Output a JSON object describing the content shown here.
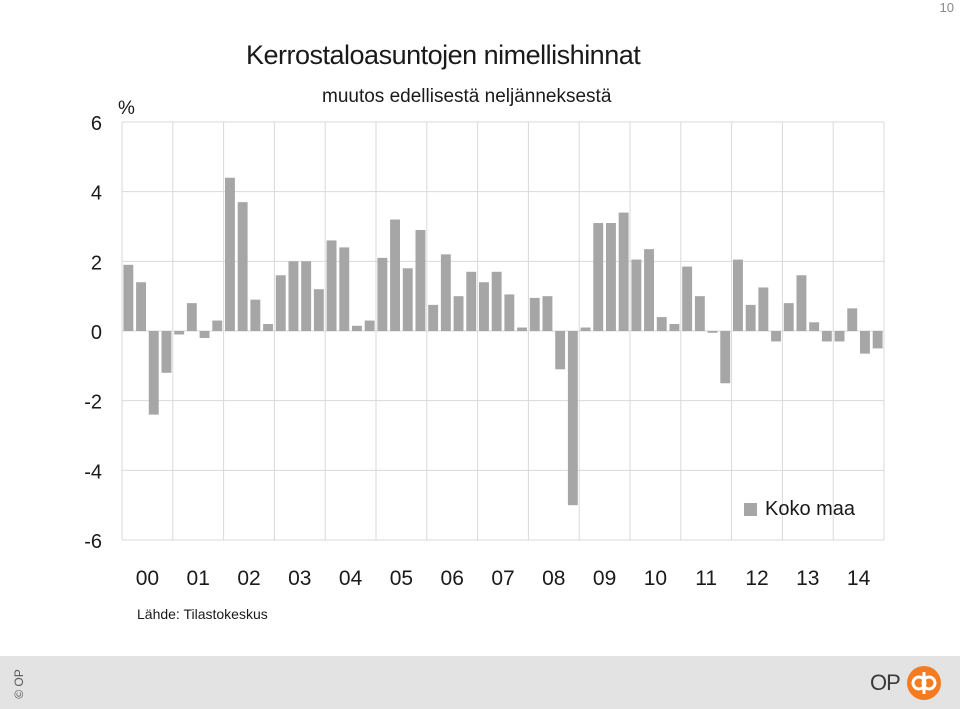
{
  "page_number": "10",
  "title": "Kerrostaloasuntojen nimellishinnat",
  "subtitle": "muutos edellisestä neljänneksestä",
  "unit_label": "%",
  "source": "Lähde: Tilastokeskus",
  "copyright": "© OP",
  "logo_text": "OP",
  "colors": {
    "bar": "#a6a6a6",
    "grid": "#d9d9d9",
    "logo": "#f47b20",
    "footer": "#e3e3e3"
  },
  "chart_data": {
    "type": "bar",
    "title": "Kerrostaloasuntojen nimellishinnat",
    "subtitle": "muutos edellisestä neljänneksestä",
    "ylabel": "%",
    "ylim": [
      -6,
      6
    ],
    "yticks": [
      6,
      4,
      2,
      0,
      -2,
      -4,
      -6
    ],
    "year_labels": [
      "00",
      "01",
      "02",
      "03",
      "04",
      "05",
      "06",
      "07",
      "08",
      "09",
      "10",
      "11",
      "12",
      "13",
      "14"
    ],
    "grid": "vertical lines between years, horizontal at y-ticks",
    "legend_position": "bottom-right",
    "series": [
      {
        "name": "Koko maa",
        "values": [
          1.9,
          1.4,
          -2.4,
          -1.2,
          -0.1,
          0.8,
          -0.2,
          0.3,
          4.4,
          3.7,
          0.9,
          0.2,
          1.6,
          2.0,
          2.0,
          1.2,
          2.6,
          2.4,
          0.15,
          0.3,
          2.1,
          3.2,
          1.8,
          2.9,
          0.75,
          2.2,
          1.0,
          1.7,
          1.4,
          1.7,
          1.05,
          0.1,
          0.95,
          1.0,
          -1.1,
          -5.0,
          0.1,
          3.1,
          3.1,
          3.4,
          2.05,
          2.35,
          0.4,
          0.2,
          1.85,
          1.0,
          -0.05,
          -1.5,
          2.05,
          0.75,
          1.25,
          -0.3,
          0.8,
          1.6,
          0.25,
          -0.3,
          -0.3,
          0.65,
          -0.65,
          -0.5
        ]
      }
    ]
  }
}
